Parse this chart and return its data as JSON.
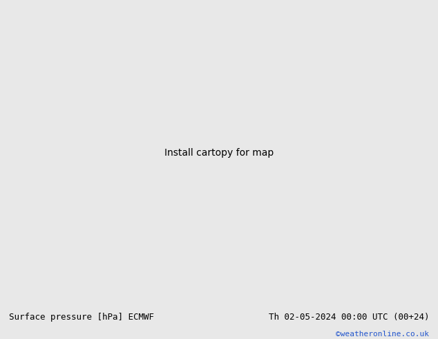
{
  "title_left": "Surface pressure [hPa] ECMWF",
  "title_right": "Th 02-05-2024 00:00 UTC (00+24)",
  "copyright": "©weatheronline.co.uk",
  "ocean_color": "#b8cfe0",
  "land_color": "#c8e6b0",
  "border_color": "#888888",
  "footer_bg": "#e8e8e8",
  "blue_isobar_color": "#0022cc",
  "black_isobar_color": "#000000",
  "red_isobar_color": "#cc2222",
  "figsize": [
    6.34,
    4.9
  ],
  "dpi": 100,
  "lon_min": 90,
  "lon_max": 180,
  "lat_min": -15,
  "lat_max": 55
}
